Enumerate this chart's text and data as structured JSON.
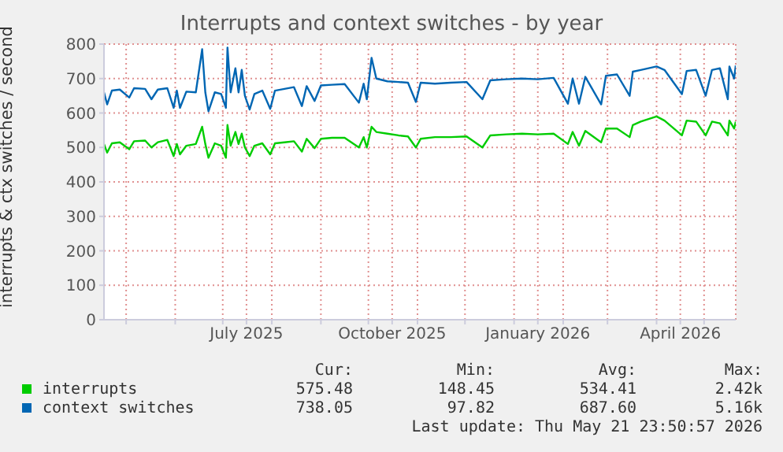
{
  "chart_data": {
    "type": "line",
    "title": "Interrupts and context switches - by year",
    "ylabel": "interrupts & ctx switches / second",
    "x": [
      "2025-04-17",
      "2025-04-19",
      "2025-04-22",
      "2025-04-27",
      "2025-05-03",
      "2025-05-06",
      "2025-05-13",
      "2025-05-17",
      "2025-05-21",
      "2025-05-27",
      "2025-05-31",
      "2025-06-02",
      "2025-06-04",
      "2025-06-08",
      "2025-06-14",
      "2025-06-18",
      "2025-06-20",
      "2025-06-22",
      "2025-06-26",
      "2025-06-30",
      "2025-07-03",
      "2025-07-04",
      "2025-07-06",
      "2025-07-09",
      "2025-07-11",
      "2025-07-13",
      "2025-07-15",
      "2025-07-18",
      "2025-07-21",
      "2025-07-26",
      "2025-07-31",
      "2025-08-03",
      "2025-08-09",
      "2025-08-15",
      "2025-08-20",
      "2025-08-23",
      "2025-08-28",
      "2025-09-01",
      "2025-09-08",
      "2025-09-16",
      "2025-09-25",
      "2025-09-28",
      "2025-09-30",
      "2025-10-03",
      "2025-10-06",
      "2025-10-13",
      "2025-10-20",
      "2025-10-26",
      "2025-10-31",
      "2025-11-03",
      "2025-11-12",
      "2025-11-22",
      "2025-12-02",
      "2025-12-12",
      "2025-12-17",
      "2025-12-27",
      "2026-01-06",
      "2026-01-16",
      "2026-01-26",
      "2026-02-04",
      "2026-02-07",
      "2026-02-11",
      "2026-02-15",
      "2026-02-25",
      "2026-02-28",
      "2026-03-07",
      "2026-03-15",
      "2026-03-17",
      "2026-03-22",
      "2026-04-01",
      "2026-04-06",
      "2026-04-17",
      "2026-04-20",
      "2026-04-26",
      "2026-05-02",
      "2026-05-06",
      "2026-05-11",
      "2026-05-16",
      "2026-05-17",
      "2026-05-20",
      "2026-05-21"
    ],
    "series": [
      {
        "name": "interrupts",
        "color": "#00cc00",
        "values": [
          510,
          485,
          512,
          515,
          495,
          518,
          520,
          500,
          515,
          522,
          475,
          510,
          480,
          505,
          510,
          560,
          510,
          470,
          512,
          505,
          470,
          565,
          505,
          545,
          510,
          540,
          500,
          475,
          505,
          512,
          480,
          512,
          515,
          518,
          488,
          525,
          498,
          525,
          528,
          528,
          500,
          530,
          500,
          560,
          545,
          540,
          535,
          532,
          500,
          525,
          530,
          530,
          532,
          500,
          535,
          538,
          540,
          538,
          540,
          510,
          545,
          505,
          548,
          515,
          555,
          555,
          530,
          565,
          575,
          590,
          578,
          535,
          578,
          575,
          535,
          575,
          570,
          535,
          578,
          555,
          575
        ]
      },
      {
        "name": "context switches",
        "color": "#0066b3",
        "values": [
          660,
          625,
          665,
          668,
          645,
          672,
          670,
          640,
          668,
          672,
          615,
          665,
          615,
          662,
          660,
          785,
          660,
          605,
          660,
          655,
          615,
          790,
          660,
          730,
          660,
          725,
          650,
          610,
          655,
          665,
          612,
          665,
          670,
          675,
          620,
          678,
          635,
          680,
          682,
          684,
          630,
          685,
          640,
          760,
          700,
          692,
          690,
          688,
          632,
          688,
          685,
          688,
          690,
          640,
          695,
          698,
          700,
          698,
          702,
          627,
          700,
          627,
          705,
          625,
          708,
          712,
          650,
          720,
          725,
          735,
          725,
          655,
          722,
          725,
          650,
          725,
          730,
          640,
          735,
          700,
          738
        ]
      }
    ],
    "xlim": [
      "2025-04-17",
      "2026-05-21"
    ],
    "xticks": [
      {
        "value": "2025-05-01",
        "label": null
      },
      {
        "value": "2025-06-01",
        "label": null
      },
      {
        "value": "2025-07-01",
        "label": null
      },
      {
        "value": "2025-07-16",
        "label": "July 2025"
      },
      {
        "value": "2025-08-01",
        "label": null
      },
      {
        "value": "2025-09-01",
        "label": null
      },
      {
        "value": "2025-10-01",
        "label": null
      },
      {
        "value": "2025-10-16",
        "label": "October 2025"
      },
      {
        "value": "2025-11-01",
        "label": null
      },
      {
        "value": "2025-12-01",
        "label": null
      },
      {
        "value": "2026-01-01",
        "label": null
      },
      {
        "value": "2026-01-16",
        "label": "January 2026"
      },
      {
        "value": "2026-02-01",
        "label": null
      },
      {
        "value": "2026-03-01",
        "label": null
      },
      {
        "value": "2026-04-01",
        "label": null
      },
      {
        "value": "2026-04-16",
        "label": "April 2026"
      },
      {
        "value": "2026-05-01",
        "label": null
      }
    ],
    "ylim": [
      0,
      800
    ],
    "yticks": [
      0,
      100,
      200,
      300,
      400,
      500,
      600,
      700,
      800
    ],
    "grid": true,
    "legend": "bottom",
    "marker": "none",
    "line_style": "solid",
    "annotations": [
      "Cur:",
      "Min:",
      "Avg:",
      "Max:",
      "575.48",
      "148.45",
      "534.41",
      "2.42k",
      "738.05",
      "97.82",
      "687.60",
      "5.16k",
      "Last update: Thu May 21 23:50:57 2026"
    ]
  }
}
